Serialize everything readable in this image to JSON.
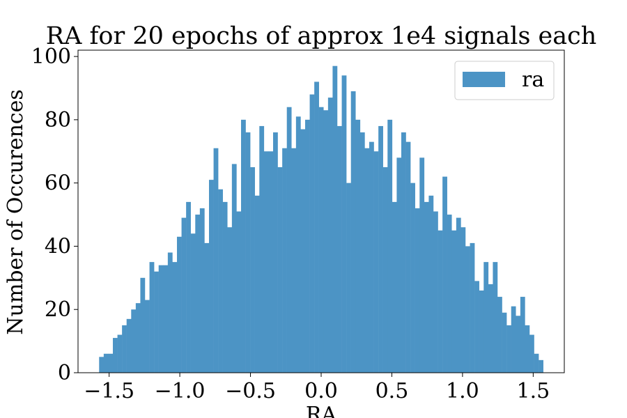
{
  "chart_data": {
    "type": "bar",
    "title": "RA for 20 epochs of approx 1e4 signals each",
    "xlabel": "RA",
    "ylabel": "Number of Occurences",
    "xlim": [
      -1.72,
      1.72
    ],
    "ylim": [
      0,
      102
    ],
    "xticks": [
      -1.5,
      -1.0,
      -0.5,
      0.0,
      0.5,
      1.0,
      1.5
    ],
    "xtick_labels": [
      "−1.5",
      "−1.0",
      "−0.5",
      "0.0",
      "0.5",
      "1.0",
      "1.5"
    ],
    "yticks": [
      0,
      20,
      40,
      60,
      80,
      100
    ],
    "ytick_labels": [
      "0",
      "20",
      "40",
      "60",
      "80",
      "100"
    ],
    "grid": false,
    "legend_position": "top-right",
    "bin_start": -1.5708,
    "bin_end": 1.5708,
    "series": [
      {
        "name": "ra",
        "color": "#4c94c5",
        "values": [
          5,
          6,
          6,
          11,
          12,
          15,
          17,
          20,
          22,
          30,
          23,
          35,
          32,
          34,
          34,
          38,
          35,
          43,
          49,
          54,
          44,
          50,
          52,
          41,
          61,
          71,
          58,
          54,
          46,
          66,
          51,
          80,
          76,
          65,
          56,
          78,
          70,
          70,
          76,
          65,
          71,
          84,
          71,
          81,
          77,
          80,
          88,
          92,
          84,
          83,
          87,
          97,
          78,
          94,
          60,
          89,
          80,
          76,
          71,
          73,
          70,
          78,
          65,
          80,
          54,
          68,
          76,
          73,
          60,
          52,
          68,
          54,
          56,
          51,
          45,
          62,
          50,
          45,
          49,
          46,
          40,
          41,
          29,
          26,
          35,
          28,
          35,
          24,
          19,
          15,
          21,
          18,
          24,
          15,
          12,
          6,
          4
        ]
      }
    ]
  }
}
